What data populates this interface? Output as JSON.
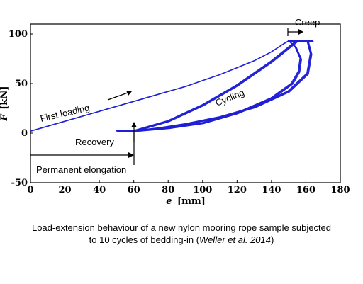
{
  "chart_data": {
    "type": "line",
    "xlabel_symbol": "e",
    "xlabel_unit": "[mm]",
    "ylabel_symbol": "F",
    "ylabel_unit": "[kN]",
    "xlim": [
      0,
      180
    ],
    "ylim": [
      -50,
      110
    ],
    "x_ticks": [
      0,
      20,
      40,
      60,
      80,
      100,
      120,
      140,
      160,
      180
    ],
    "y_ticks": [
      -50,
      0,
      50,
      100
    ],
    "grid": false,
    "color": "#1f1fd6",
    "series": [
      {
        "role": "first-loading",
        "x": [
          0,
          10,
          20,
          30,
          40,
          50,
          60,
          70,
          80,
          90,
          100,
          110,
          120,
          130,
          140,
          147,
          150
        ],
        "y": [
          2,
          7,
          12,
          17,
          22,
          27,
          32,
          37,
          42,
          47,
          53,
          59,
          66,
          73,
          82,
          90,
          93
        ]
      },
      {
        "role": "unloading",
        "x": [
          150,
          154,
          157,
          156,
          152,
          140,
          120,
          100,
          80,
          60,
          50
        ],
        "y": [
          93,
          87,
          75,
          62,
          50,
          35,
          20,
          10,
          5,
          2,
          2
        ]
      },
      {
        "role": "cycle-loading",
        "x": [
          60,
          80,
          100,
          120,
          140,
          150,
          155
        ],
        "y": [
          2,
          12,
          28,
          48,
          72,
          86,
          93
        ]
      },
      {
        "role": "cycle-unloading",
        "x": [
          161,
          163,
          161,
          150,
          130,
          110,
          90,
          75,
          65,
          60
        ],
        "y": [
          93,
          80,
          60,
          42,
          26,
          16,
          9,
          5,
          3,
          2
        ]
      },
      {
        "role": "creep",
        "x": [
          150,
          155,
          160,
          164
        ],
        "y": [
          93,
          93,
          93,
          93
        ]
      }
    ]
  },
  "annotations": {
    "first_loading": "First loading",
    "cycling": "Cycling",
    "creep": "Creep",
    "recovery": "Recovery",
    "permanent_elongation": "Permanent elongation"
  },
  "caption": {
    "text": "Load-extension behaviour of a new nylon mooring rope sample subjected to 10 cycles of bedding-in",
    "citation_authors": "Weller et al.",
    "citation_year": "2014"
  }
}
